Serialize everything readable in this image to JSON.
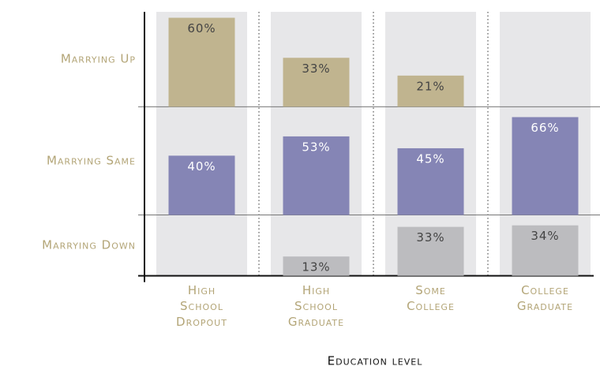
{
  "chart_data": {
    "type": "bar",
    "x_label": "Education level",
    "categories": [
      "High School Dropout",
      "High School Graduate",
      "Some College",
      "College Graduate"
    ],
    "series": [
      {
        "name": "Marrying Up",
        "color": "#c0b48f",
        "ylim": [
          0,
          64
        ],
        "values": [
          60,
          33,
          21,
          null
        ],
        "value_labels": [
          "60%",
          "33%",
          "21%",
          null
        ]
      },
      {
        "name": "Marrying Same",
        "color": "#8585b5",
        "ylim": [
          0,
          73
        ],
        "values": [
          40,
          53,
          45,
          66
        ],
        "value_labels": [
          "40%",
          "53%",
          "45%",
          "66%"
        ]
      },
      {
        "name": "Marrying Down",
        "color": "#bcbcbf",
        "ylim": [
          0,
          41
        ],
        "values": [
          null,
          13,
          33,
          34
        ],
        "value_labels": [
          null,
          "13%",
          "33%",
          "34%"
        ]
      }
    ]
  }
}
